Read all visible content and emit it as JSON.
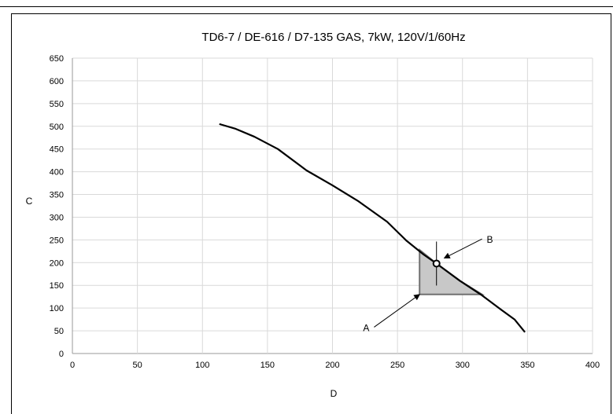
{
  "chart_data": {
    "type": "line",
    "title": "TD6-7 / DE-616 / D7-135 GAS, 7kW, 120V/1/60Hz",
    "xlabel": "D",
    "ylabel": "C",
    "xlim": [
      0,
      400
    ],
    "ylim": [
      0,
      650
    ],
    "x_ticks": [
      "0",
      "50",
      "100",
      "150",
      "200",
      "250",
      "300",
      "350",
      "400"
    ],
    "y_ticks": [
      "0",
      "50",
      "100",
      "150",
      "200",
      "250",
      "300",
      "350",
      "400",
      "450",
      "500",
      "550",
      "600",
      "650"
    ],
    "grid": true,
    "series": [
      {
        "color": "#000000",
        "points": [
          [
            113,
            505
          ],
          [
            125,
            495
          ],
          [
            140,
            477
          ],
          [
            158,
            450
          ],
          [
            180,
            403
          ],
          [
            200,
            370
          ],
          [
            220,
            335
          ],
          [
            242,
            290
          ],
          [
            257,
            248
          ],
          [
            270,
            218
          ],
          [
            280,
            198
          ],
          [
            298,
            160
          ],
          [
            315,
            128
          ],
          [
            328,
            100
          ],
          [
            340,
            75
          ],
          [
            348,
            47
          ]
        ]
      }
    ],
    "shaded_region": {
      "color": "#c8c8c8",
      "points": [
        [
          267,
          130
        ],
        [
          267,
          228
        ],
        [
          280,
          198
        ],
        [
          298,
          160
        ],
        [
          315,
          130
        ]
      ]
    },
    "operating_point": {
      "x": 280,
      "y": 198
    },
    "annotations": [
      {
        "text": "A",
        "from": [
          232,
          58
        ],
        "to": [
          267,
          130
        ]
      },
      {
        "text": "B",
        "from": [
          315,
          252
        ],
        "to": [
          286,
          210
        ]
      }
    ]
  }
}
